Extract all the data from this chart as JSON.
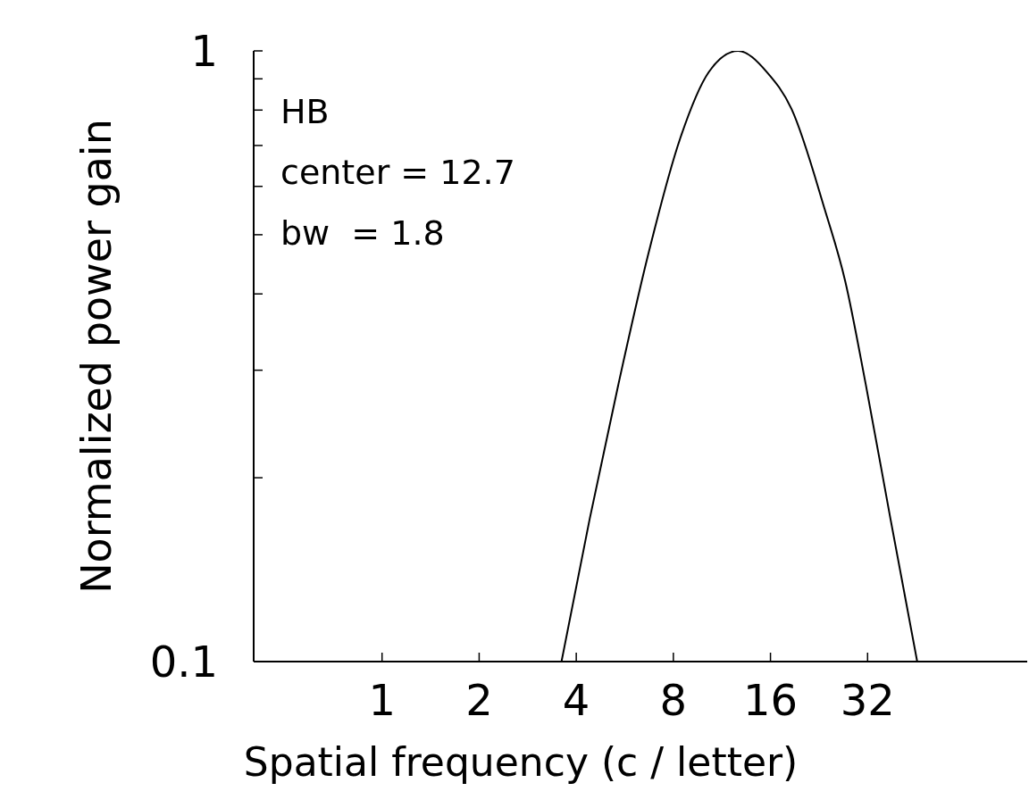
{
  "chart_data": {
    "type": "line",
    "xlabel": "Spatial frequency (c / letter)",
    "ylabel": "Normalized power gain",
    "annotations": [
      "HB",
      "center = 12.7",
      "bw  = 1.8"
    ],
    "x": [
      3.6,
      4.4,
      5.4,
      6.65,
      8.4,
      10.3,
      12.7,
      15.6,
      18.6,
      23.5,
      27.3,
      31.6,
      37.7,
      45.6
    ],
    "series": [
      {
        "color": "#000000",
        "values": [
          0.1,
          0.171,
          0.284,
          0.459,
          0.719,
          0.923,
          1,
          0.923,
          0.803,
          0.553,
          0.419,
          0.284,
          0.171,
          0.1
        ]
      }
    ],
    "xlim": [
      0.4,
      100
    ],
    "ylim": [
      0.1,
      1
    ],
    "log": "xy",
    "xticks": [
      1,
      2,
      4,
      8,
      16,
      32
    ],
    "yticks": [
      {
        "value": 0.1,
        "label": "0.1"
      },
      {
        "value": 0.2,
        "label": null
      },
      {
        "value": 0.3,
        "label": null
      },
      {
        "value": 0.4,
        "label": null
      },
      {
        "value": 0.5,
        "label": null
      },
      {
        "value": 0.6,
        "label": null
      },
      {
        "value": 0.7,
        "label": null
      },
      {
        "value": 0.8,
        "label": null
      },
      {
        "value": 0.9,
        "label": null
      },
      {
        "value": 1,
        "label": "1"
      }
    ]
  }
}
